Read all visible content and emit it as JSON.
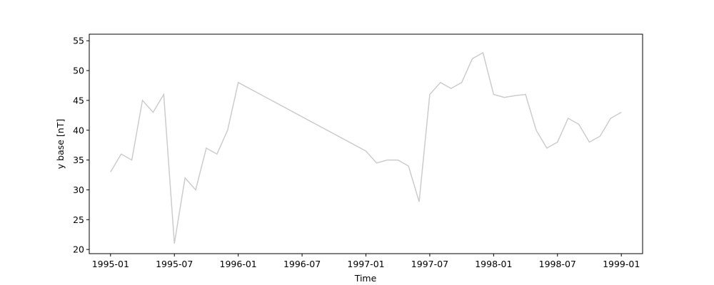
{
  "chart_data": {
    "type": "line",
    "xlabel": "Time",
    "ylabel": "y base [nT]",
    "x": [
      "1995-01",
      "1995-02",
      "1995-03",
      "1995-04",
      "1995-05",
      "1995-06",
      "1995-07",
      "1995-08",
      "1995-09",
      "1995-10",
      "1995-11",
      "1995-12",
      "1996-01",
      "1997-01",
      "1997-02",
      "1997-03",
      "1997-04",
      "1997-05",
      "1997-06",
      "1997-07",
      "1997-08",
      "1997-09",
      "1997-10",
      "1997-11",
      "1997-12",
      "1998-01",
      "1998-02",
      "1998-03",
      "1998-04",
      "1998-05",
      "1998-06",
      "1998-07",
      "1998-08",
      "1998-09",
      "1998-10",
      "1998-11",
      "1998-12",
      "1999-01"
    ],
    "series": [
      {
        "name": "y base",
        "color": "#cccccc",
        "values": [
          33,
          36,
          35,
          45,
          43,
          46,
          21,
          32,
          30,
          37,
          36,
          40,
          48,
          36.5,
          34.5,
          35,
          35,
          34,
          28,
          46,
          48,
          47,
          48,
          52,
          53,
          46,
          45.5,
          45.8,
          46,
          40,
          37,
          38,
          42,
          41,
          38,
          39,
          42,
          43
        ]
      }
    ],
    "xlim": [
      "1994-11",
      "1999-03"
    ],
    "xticks": [
      "1995-01",
      "1995-07",
      "1996-01",
      "1996-07",
      "1997-01",
      "1997-07",
      "1998-01",
      "1998-07",
      "1999-01"
    ],
    "ylim": [
      19.3,
      56.1
    ],
    "yticks": [
      20,
      25,
      30,
      35,
      40,
      45,
      50,
      55
    ]
  }
}
